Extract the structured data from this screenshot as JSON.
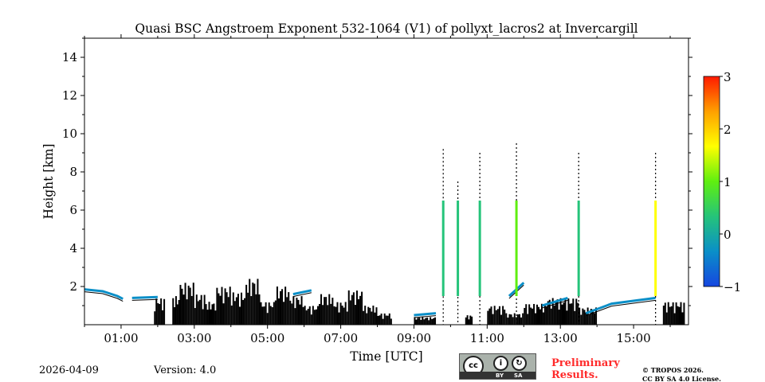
{
  "chart_data": {
    "type": "heatmap",
    "title": "Quasi BSC Angstroem Exponent 532-1064 (V1) of pollyxt_lacros2 at Invercargill",
    "xlabel": "Time [UTC]",
    "ylabel": "Height [km]",
    "xlim_hours": [
      0,
      16.5
    ],
    "ylim": [
      0,
      15
    ],
    "x_ticks": [
      {
        "v": 1,
        "label": "01:00"
      },
      {
        "v": 3,
        "label": "03:00"
      },
      {
        "v": 5,
        "label": "05:00"
      },
      {
        "v": 7,
        "label": "07:00"
      },
      {
        "v": 9,
        "label": "09:00"
      },
      {
        "v": 11,
        "label": "11:00"
      },
      {
        "v": 13,
        "label": "13:00"
      },
      {
        "v": 15,
        "label": "15:00"
      }
    ],
    "y_ticks": [
      {
        "v": 2,
        "label": "2"
      },
      {
        "v": 4,
        "label": "4"
      },
      {
        "v": 6,
        "label": "6"
      },
      {
        "v": 8,
        "label": "8"
      },
      {
        "v": 10,
        "label": "10"
      },
      {
        "v": 12,
        "label": "12"
      },
      {
        "v": 14,
        "label": "14"
      }
    ],
    "colorbar": {
      "range": [
        -1,
        3
      ],
      "ticks": [
        {
          "v": 3,
          "label": "3"
        },
        {
          "v": 2,
          "label": "2"
        },
        {
          "v": 1,
          "label": "1"
        },
        {
          "v": 0,
          "label": "0"
        },
        {
          "v": -1,
          "label": "−1"
        }
      ],
      "colors": [
        "#1646e0",
        "#0a8fc8",
        "#25c47a",
        "#5fef10",
        "#ffff00",
        "#ffa000",
        "#ff1a00"
      ]
    },
    "aerosol_layers": [
      {
        "value": -0.6,
        "points": [
          [
            0,
            1.85
          ],
          [
            0.5,
            1.75
          ],
          [
            0.9,
            1.5
          ],
          [
            1.05,
            1.35
          ]
        ]
      },
      {
        "value": -0.5,
        "points": [
          [
            1.3,
            1.4
          ],
          [
            2.0,
            1.45
          ]
        ]
      },
      {
        "value": -0.6,
        "points": [
          [
            5.7,
            1.6
          ],
          [
            6.2,
            1.8
          ]
        ]
      },
      {
        "value": -0.4,
        "points": [
          [
            9.0,
            0.5
          ],
          [
            9.6,
            0.6
          ]
        ]
      },
      {
        "value": -0.3,
        "points": [
          [
            11.6,
            1.5
          ],
          [
            12.0,
            2.2
          ]
        ]
      },
      {
        "value": -0.6,
        "points": [
          [
            12.5,
            1.0
          ],
          [
            13.2,
            1.4
          ]
        ]
      },
      {
        "value": -0.5,
        "points": [
          [
            13.7,
            0.6
          ],
          [
            14.4,
            1.1
          ],
          [
            15.6,
            1.4
          ]
        ]
      }
    ],
    "cloud_segments": [
      [
        1.9,
        2.2,
        1.4
      ],
      [
        2.4,
        2.6,
        1.5
      ],
      [
        2.6,
        3.0,
        2.2
      ],
      [
        3.0,
        3.3,
        1.6
      ],
      [
        3.3,
        3.6,
        1.2
      ],
      [
        3.6,
        4.0,
        2.0
      ],
      [
        4.0,
        4.4,
        1.7
      ],
      [
        4.4,
        4.8,
        2.4
      ],
      [
        4.8,
        5.2,
        1.2
      ],
      [
        5.2,
        5.6,
        2.0
      ],
      [
        5.6,
        6.0,
        1.5
      ],
      [
        6.0,
        6.4,
        1.0
      ],
      [
        6.4,
        6.8,
        1.6
      ],
      [
        6.8,
        7.2,
        1.2
      ],
      [
        7.2,
        7.6,
        1.8
      ],
      [
        7.6,
        8.0,
        1.0
      ],
      [
        8.0,
        8.4,
        0.6
      ],
      [
        9.0,
        9.6,
        0.4
      ],
      [
        10.4,
        10.6,
        0.5
      ],
      [
        11.0,
        11.5,
        1.0
      ],
      [
        11.5,
        12.0,
        0.6
      ],
      [
        12.0,
        12.6,
        1.1
      ],
      [
        12.6,
        13.5,
        1.4
      ],
      [
        13.5,
        14.0,
        0.9
      ],
      [
        15.8,
        16.4,
        1.2
      ]
    ],
    "streaks": [
      {
        "t": 9.8,
        "top": 9.2,
        "value": 0.3
      },
      {
        "t": 10.2,
        "top": 7.5,
        "value": 0.0
      },
      {
        "t": 10.8,
        "top": 9.0,
        "value": 0.2
      },
      {
        "t": 11.8,
        "top": 9.5,
        "value": 1.2
      },
      {
        "t": 13.5,
        "top": 9.0,
        "value": 0.2
      },
      {
        "t": 15.6,
        "top": 9.0,
        "value": 1.6
      }
    ]
  },
  "footer": {
    "date": "2026-04-09",
    "version": "Version: 4.0",
    "preliminary": [
      "Preliminary",
      "Results."
    ],
    "copyright": [
      "© TROPOS 2026.",
      "CC BY SA 4.0 License."
    ],
    "license_badge": {
      "cc": "cc",
      "by": "BY",
      "sa": "SA"
    }
  }
}
